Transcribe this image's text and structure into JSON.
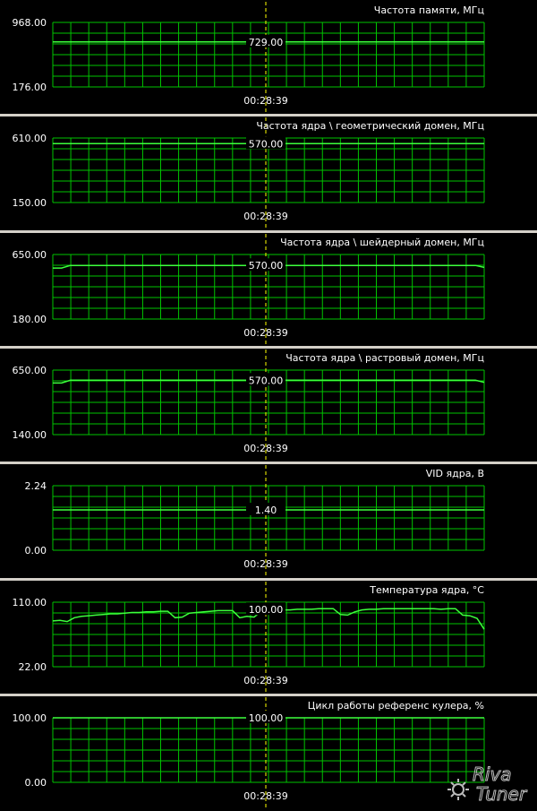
{
  "panels": [
    {
      "title": "Частота памяти, МГц",
      "max": "968.00",
      "min": "176.00",
      "value": "729.00",
      "time": "00:28:39",
      "level": 0.697,
      "series": null
    },
    {
      "title": "Частота ядра \\ геометрический домен, МГц",
      "max": "610.00",
      "min": "150.00",
      "value": "570.00",
      "time": "00:28:39",
      "level": 0.913,
      "series": null
    },
    {
      "title": "Частота ядра \\ шейдерный домен, МГц",
      "max": "650.00",
      "min": "180.00",
      "value": "570.00",
      "time": "00:28:39",
      "level": 0.83,
      "series": [
        0.79,
        0.79,
        0.83,
        0.83,
        0.83,
        0.83,
        0.83,
        0.83,
        0.83,
        0.83,
        0.83,
        0.83,
        0.83,
        0.83,
        0.83,
        0.83,
        0.83,
        0.83,
        0.83,
        0.83,
        0.83,
        0.83,
        0.83,
        0.83,
        0.83,
        0.83,
        0.83,
        0.83,
        0.83,
        0.83,
        0.83,
        0.83,
        0.83,
        0.83,
        0.83,
        0.83,
        0.83,
        0.83,
        0.83,
        0.83,
        0.83,
        0.83,
        0.83,
        0.83,
        0.83,
        0.83,
        0.83,
        0.83,
        0.83,
        0.8
      ]
    },
    {
      "title": "Частота ядра \\ растровый домен, МГц",
      "max": "650.00",
      "min": "140.00",
      "value": "570.00",
      "time": "00:28:39",
      "level": 0.843,
      "series": [
        0.8,
        0.8,
        0.843,
        0.843,
        0.843,
        0.843,
        0.843,
        0.843,
        0.843,
        0.843,
        0.843,
        0.843,
        0.843,
        0.843,
        0.843,
        0.843,
        0.843,
        0.843,
        0.843,
        0.843,
        0.843,
        0.843,
        0.843,
        0.843,
        0.843,
        0.843,
        0.843,
        0.843,
        0.843,
        0.843,
        0.843,
        0.843,
        0.843,
        0.843,
        0.843,
        0.843,
        0.843,
        0.843,
        0.843,
        0.843,
        0.843,
        0.843,
        0.843,
        0.843,
        0.843,
        0.843,
        0.843,
        0.843,
        0.843,
        0.81
      ]
    },
    {
      "title": "VID ядра, В",
      "max": "2.24",
      "min": "0.00",
      "value": "1.40",
      "time": "00:28:39",
      "level": 0.625,
      "series": null
    },
    {
      "title": "Температура ядра, °С",
      "max": "110.00",
      "min": "22.00",
      "value": "100.00",
      "time": "00:28:39",
      "level": 0.886,
      "series": [
        0.71,
        0.72,
        0.7,
        0.76,
        0.78,
        0.79,
        0.8,
        0.81,
        0.82,
        0.82,
        0.83,
        0.84,
        0.84,
        0.85,
        0.85,
        0.86,
        0.86,
        0.76,
        0.77,
        0.83,
        0.84,
        0.85,
        0.86,
        0.87,
        0.87,
        0.87,
        0.76,
        0.78,
        0.77,
        0.86,
        0.87,
        0.87,
        0.88,
        0.88,
        0.89,
        0.89,
        0.89,
        0.9,
        0.9,
        0.9,
        0.81,
        0.8,
        0.85,
        0.88,
        0.89,
        0.89,
        0.9,
        0.9,
        0.9,
        0.9,
        0.9,
        0.9,
        0.9,
        0.9,
        0.89,
        0.9,
        0.9,
        0.8,
        0.79,
        0.75,
        0.58
      ]
    },
    {
      "title": "Цикл работы референс кулера, %",
      "max": "100.00",
      "min": "0.00",
      "value": "100.00",
      "time": "00:28:39",
      "level": 1.0,
      "series": null
    }
  ],
  "colors": {
    "grid": "#00c400",
    "line": "#3dff3d",
    "cursor": "#ffff00",
    "separator": "#d4d0c8"
  },
  "logo": {
    "icon": "gear-icon",
    "text": "RivaTuner"
  }
}
